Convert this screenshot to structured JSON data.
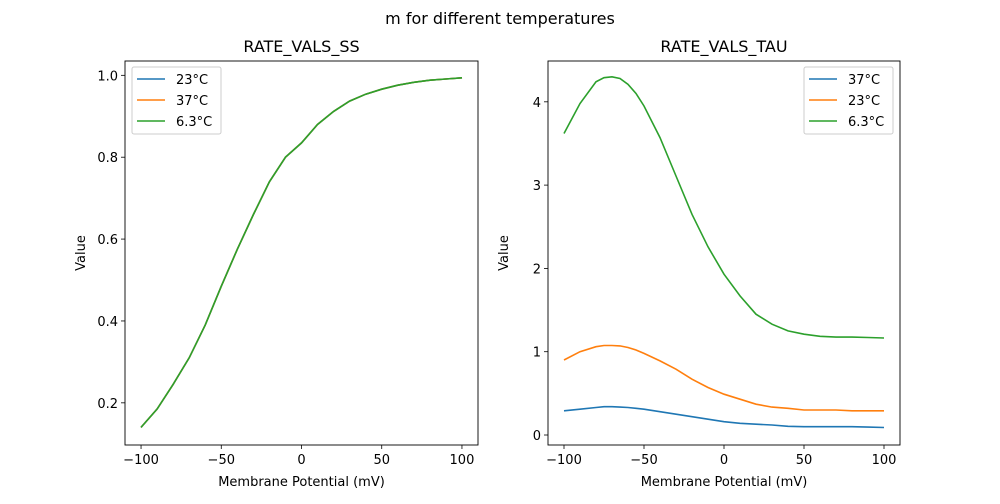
{
  "figure_title": "m for different temperatures",
  "colors": {
    "blue": "#1f77b4",
    "orange": "#ff7f0e",
    "green": "#2ca02c"
  },
  "chart_data": [
    {
      "type": "line",
      "title": "RATE_VALS_SS",
      "xlabel": "Membrane Potential (mV)",
      "ylabel": "Value",
      "xlim": [
        -110,
        110
      ],
      "ylim": [
        0.097,
        1.035
      ],
      "xticks": [
        -100,
        -50,
        0,
        50,
        100
      ],
      "xtick_labels": [
        "−100",
        "−50",
        "0",
        "50",
        "100"
      ],
      "yticks": [
        0.2,
        0.4,
        0.6,
        0.8,
        1.0
      ],
      "ytick_labels": [
        "0.2",
        "0.4",
        "0.6",
        "0.8",
        "1.0"
      ],
      "legend_position": "top-left",
      "x": [
        -100,
        -90,
        -80,
        -70,
        -60,
        -50,
        -40,
        -30,
        -20,
        -10,
        0,
        10,
        20,
        30,
        40,
        50,
        60,
        70,
        80,
        90,
        100
      ],
      "series": [
        {
          "name": "23°C",
          "color": "#1f77b4",
          "values": [
            0.14,
            0.185,
            0.245,
            0.31,
            0.39,
            0.485,
            0.575,
            0.66,
            0.74,
            0.8,
            0.835,
            0.88,
            0.912,
            0.937,
            0.954,
            0.966,
            0.976,
            0.983,
            0.988,
            0.991,
            0.994
          ]
        },
        {
          "name": "37°C",
          "color": "#ff7f0e",
          "values": [
            0.14,
            0.185,
            0.245,
            0.31,
            0.39,
            0.485,
            0.575,
            0.66,
            0.74,
            0.8,
            0.835,
            0.88,
            0.912,
            0.937,
            0.954,
            0.966,
            0.976,
            0.983,
            0.988,
            0.991,
            0.994
          ]
        },
        {
          "name": "6.3°C",
          "color": "#2ca02c",
          "values": [
            0.14,
            0.185,
            0.245,
            0.31,
            0.39,
            0.485,
            0.575,
            0.66,
            0.74,
            0.8,
            0.835,
            0.88,
            0.912,
            0.937,
            0.954,
            0.966,
            0.976,
            0.983,
            0.988,
            0.991,
            0.994
          ]
        }
      ]
    },
    {
      "type": "line",
      "title": "RATE_VALS_TAU",
      "xlabel": "Membrane Potential (mV)",
      "ylabel": "Value",
      "xlim": [
        -110,
        110
      ],
      "ylim": [
        -0.12,
        4.49
      ],
      "xticks": [
        -100,
        -50,
        0,
        50,
        100
      ],
      "xtick_labels": [
        "−100",
        "−50",
        "0",
        "50",
        "100"
      ],
      "yticks": [
        0,
        1,
        2,
        3,
        4
      ],
      "ytick_labels": [
        "0",
        "1",
        "2",
        "3",
        "4"
      ],
      "legend_position": "top-right",
      "x": [
        -100,
        -90,
        -80,
        -75,
        -70,
        -65,
        -60,
        -55,
        -50,
        -40,
        -30,
        -20,
        -10,
        0,
        10,
        20,
        30,
        40,
        50,
        60,
        70,
        80,
        90,
        100
      ],
      "series": [
        {
          "name": "37°C",
          "color": "#1f77b4",
          "values": [
            0.29,
            0.31,
            0.33,
            0.34,
            0.34,
            0.335,
            0.33,
            0.32,
            0.31,
            0.28,
            0.25,
            0.22,
            0.19,
            0.16,
            0.14,
            0.13,
            0.12,
            0.105,
            0.1,
            0.1,
            0.1,
            0.1,
            0.095,
            0.09
          ]
        },
        {
          "name": "23°C",
          "color": "#ff7f0e",
          "values": [
            0.9,
            1.0,
            1.06,
            1.075,
            1.075,
            1.07,
            1.05,
            1.02,
            0.98,
            0.89,
            0.79,
            0.67,
            0.57,
            0.49,
            0.43,
            0.37,
            0.335,
            0.32,
            0.3,
            0.3,
            0.3,
            0.29,
            0.29,
            0.29
          ]
        },
        {
          "name": "6.3°C",
          "color": "#2ca02c",
          "values": [
            3.62,
            3.98,
            4.24,
            4.29,
            4.3,
            4.28,
            4.21,
            4.1,
            3.95,
            3.57,
            3.11,
            2.65,
            2.26,
            1.93,
            1.67,
            1.45,
            1.33,
            1.25,
            1.21,
            1.185,
            1.175,
            1.175,
            1.17,
            1.165
          ]
        }
      ]
    }
  ]
}
